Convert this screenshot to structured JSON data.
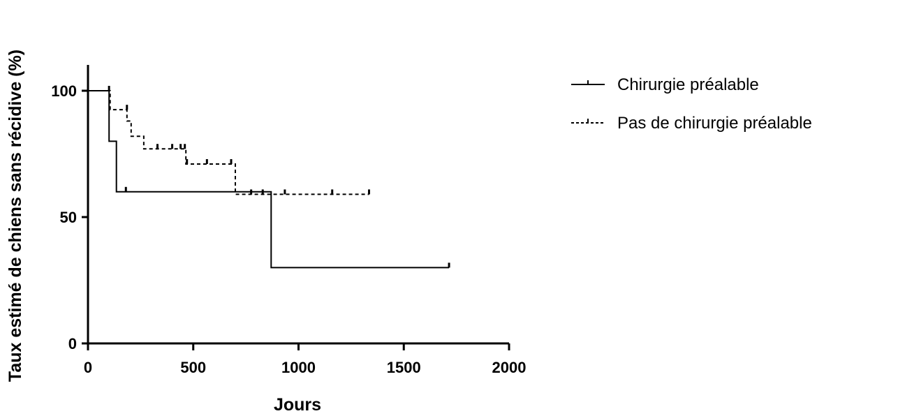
{
  "chart_data": {
    "type": "line",
    "subtype": "kaplan-meier",
    "title": "",
    "xlabel": "Jours",
    "ylabel": "Taux estimé de chiens sans récidive (%)",
    "xlim": [
      0,
      2000
    ],
    "ylim": [
      0,
      110
    ],
    "x_ticks": [
      0,
      500,
      1000,
      1500,
      2000
    ],
    "x_tick_labels": [
      "0",
      "500",
      "1000",
      "1500",
      "2000"
    ],
    "y_ticks": [
      0,
      50,
      100
    ],
    "y_tick_labels": [
      "0",
      "50",
      "100"
    ],
    "grid": false,
    "legend_position": "top-right outside",
    "series": [
      {
        "name": "Chirurgie préalable",
        "style": "solid",
        "color": "#000000",
        "steps": [
          [
            0,
            100
          ],
          [
            100,
            100
          ],
          [
            100,
            80
          ],
          [
            135,
            80
          ],
          [
            135,
            60
          ],
          [
            870,
            60
          ],
          [
            870,
            30
          ],
          [
            1715,
            30
          ]
        ],
        "censored": [
          [
            100,
            100
          ],
          [
            180,
            60
          ],
          [
            1715,
            30
          ]
        ]
      },
      {
        "name": "Pas de chirurgie préalable",
        "style": "dashed",
        "color": "#000000",
        "steps": [
          [
            0,
            100
          ],
          [
            105,
            100
          ],
          [
            105,
            92.5
          ],
          [
            185,
            92.5
          ],
          [
            185,
            88
          ],
          [
            205,
            88
          ],
          [
            205,
            82
          ],
          [
            265,
            82
          ],
          [
            265,
            77
          ],
          [
            465,
            77
          ],
          [
            465,
            71
          ],
          [
            700,
            71
          ],
          [
            700,
            59
          ],
          [
            1335,
            59
          ]
        ],
        "censored": [
          [
            185,
            92.5
          ],
          [
            330,
            77
          ],
          [
            400,
            77
          ],
          [
            440,
            77
          ],
          [
            460,
            77
          ],
          [
            470,
            71
          ],
          [
            565,
            71
          ],
          [
            680,
            71
          ],
          [
            775,
            59
          ],
          [
            830,
            59
          ],
          [
            935,
            59
          ],
          [
            1160,
            59
          ],
          [
            1335,
            59
          ]
        ]
      }
    ]
  }
}
